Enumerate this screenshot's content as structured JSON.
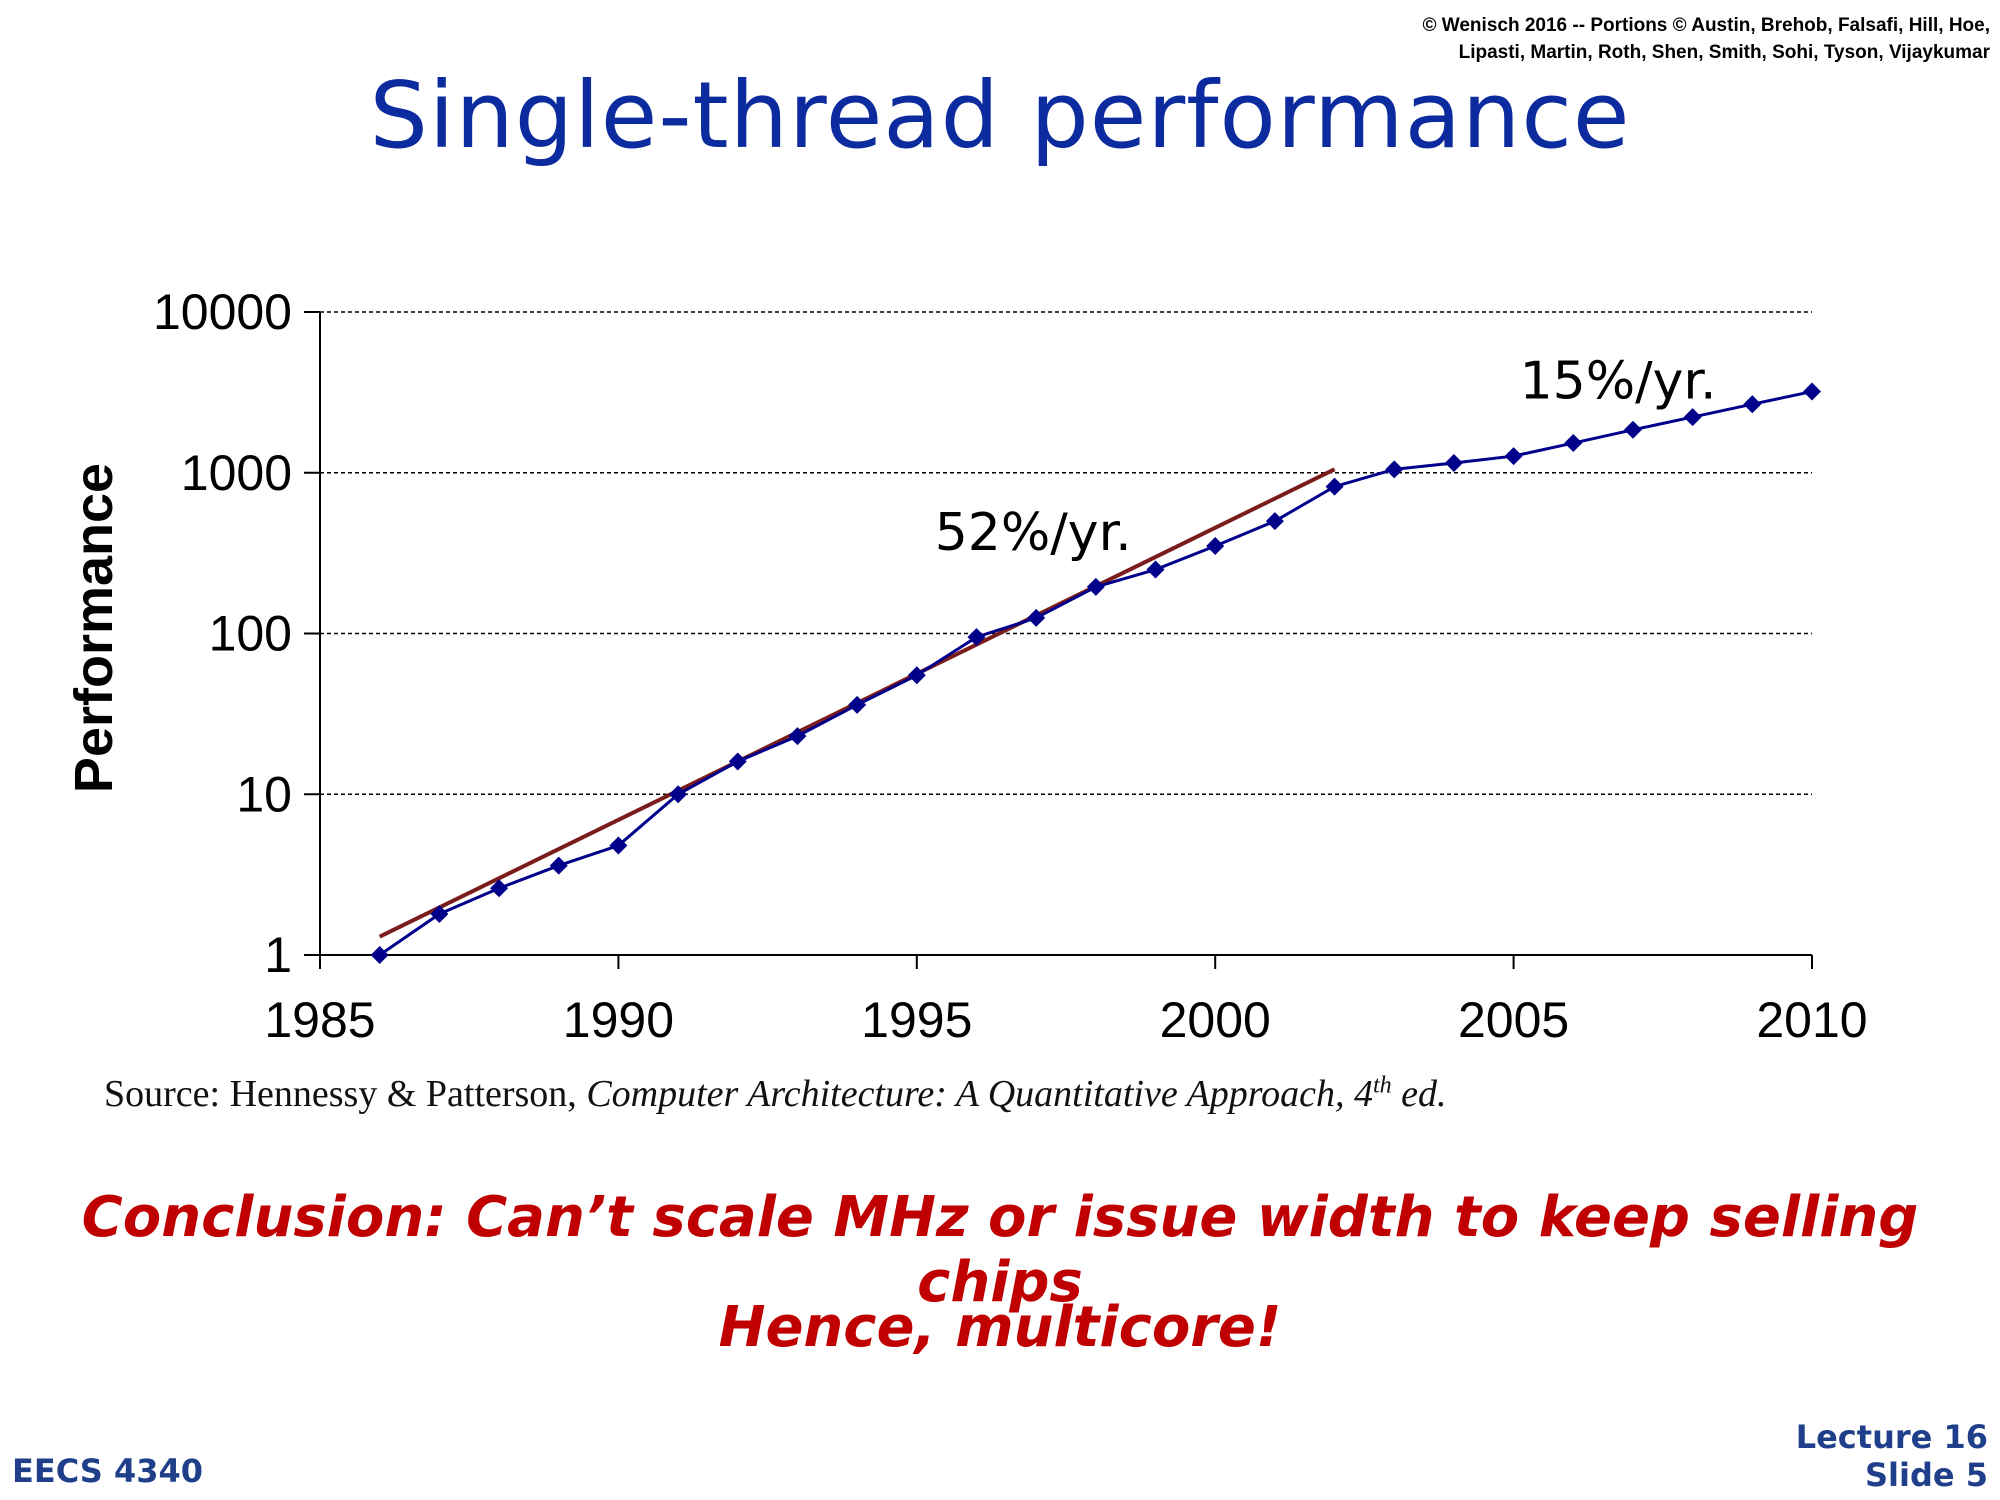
{
  "copyright": {
    "line1": "© Wenisch 2016 -- Portions © Austin, Brehob, Falsafi, Hill, Hoe,",
    "line2": "Lipasti, Martin, Roth, Shen, Smith, Sohi, Tyson, Vijaykumar"
  },
  "slide": {
    "title": "Single-thread performance",
    "source_prefix": "Source: Hennessy & Patterson, ",
    "source_italic": "Computer Architecture: A Quantitative Approach, 4",
    "source_sup": "th",
    "source_suffix": " ed.",
    "conclusion_line1": "Conclusion: Can’t scale MHz or issue width to keep selling chips",
    "conclusion_line2": "Hence, multicore!",
    "course": "EECS 4340",
    "lecture": "Lecture 16",
    "slide_number": "Slide 5"
  },
  "chart_data": {
    "type": "line",
    "title": "",
    "xlabel": "",
    "ylabel": "Performance",
    "x_scale": "linear",
    "y_scale": "log",
    "xlim": [
      1985,
      2010
    ],
    "ylim": [
      1,
      10000
    ],
    "x_ticks": [
      1985,
      1990,
      1995,
      2000,
      2005,
      2010
    ],
    "y_ticks": [
      1,
      10,
      100,
      1000,
      10000
    ],
    "y_tick_labels": [
      "1",
      "10",
      "100",
      "1000",
      "10000"
    ],
    "grid": "horizontal dashed",
    "legend": "none",
    "series": [
      {
        "color": "#00008b",
        "marker": "diamond",
        "x": [
          1986,
          1987,
          1988,
          1989,
          1990,
          1991,
          1992,
          1993,
          1994,
          1995,
          1996,
          1997,
          1998,
          1999,
          2000,
          2001,
          2002,
          2003,
          2004,
          2005,
          2006,
          2007,
          2008,
          2009,
          2010
        ],
        "y": [
          1,
          1.8,
          2.6,
          3.6,
          4.8,
          10,
          16,
          23,
          36,
          55,
          95,
          125,
          195,
          250,
          350,
          500,
          820,
          1050,
          1150,
          1270,
          1530,
          1850,
          2220,
          2670,
          3200
        ]
      }
    ],
    "trendlines": [
      {
        "x": [
          1986,
          2002
        ],
        "y": [
          1.3,
          1050
        ],
        "color": "#7b1c1c"
      }
    ],
    "annotations": [
      {
        "text": "52%/yr.",
        "x": 1995.3,
        "y": 330
      },
      {
        "text": "15%/yr.",
        "x": 2005.1,
        "y": 2900
      }
    ]
  }
}
